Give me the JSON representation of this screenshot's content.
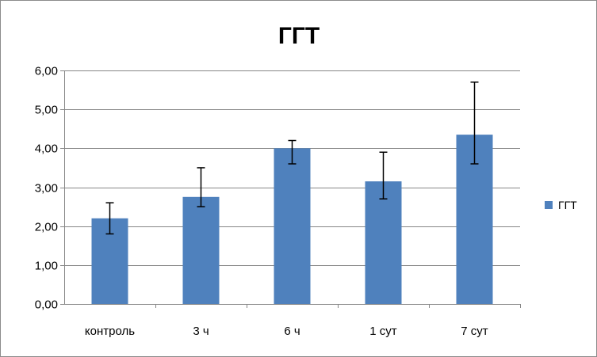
{
  "chart_data": {
    "type": "bar",
    "title": "ГГТ",
    "xlabel": "",
    "ylabel": "",
    "categories": [
      "контроль",
      "3 ч",
      "6 ч",
      "1 сут",
      "7 сут"
    ],
    "series": [
      {
        "name": "ГГТ",
        "color": "#4f81bd",
        "values": [
          2.2,
          2.75,
          4.0,
          3.15,
          4.35
        ],
        "error_low": [
          1.8,
          2.5,
          3.6,
          2.7,
          3.6
        ],
        "error_high": [
          2.6,
          3.5,
          4.2,
          3.9,
          5.7
        ]
      }
    ],
    "ylim": [
      0,
      6
    ],
    "yticks": [
      "0,00",
      "1,00",
      "2,00",
      "3,00",
      "4,00",
      "5,00",
      "6,00"
    ],
    "grid": true,
    "grid_color": "#878787",
    "error_bar_color": "#000000",
    "legend_position": "right"
  }
}
